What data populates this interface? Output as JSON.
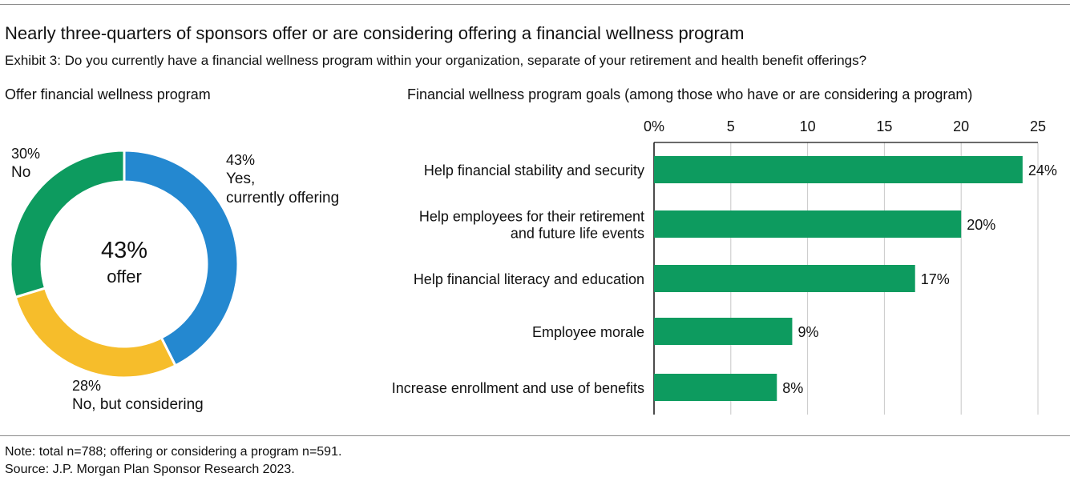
{
  "header": {
    "title": "Nearly three-quarters of sponsors offer or are considering offering a financial wellness program",
    "exhibit": "Exhibit 3: Do you currently have a financial wellness program within your organization, separate of your retirement and health benefit offerings?"
  },
  "footer": {
    "note": "Note: total n=788; offering or considering a program n=591.",
    "source": "Source: J.P. Morgan Plan Sponsor Research 2023."
  },
  "chart_data": [
    {
      "type": "pie",
      "title": "Offer financial wellness program",
      "center_value": "43%",
      "center_label": "offer",
      "slices": [
        {
          "name": "Yes, currently offering",
          "label_lines": [
            "Yes,",
            "currently offering"
          ],
          "value": 43,
          "value_label": "43%",
          "color": "#2488d0"
        },
        {
          "name": "No, but considering",
          "label_lines": [
            "No, but considering"
          ],
          "value": 28,
          "value_label": "28%",
          "color": "#f6bd2b"
        },
        {
          "name": "No",
          "label_lines": [
            "No"
          ],
          "value": 30,
          "value_label": "30%",
          "color": "#0d9b5f"
        }
      ]
    },
    {
      "type": "bar",
      "orientation": "horizontal",
      "title": "Financial wellness program goals (among those who have or are considering a program)",
      "categories": [
        [
          "Help financial stability and security"
        ],
        [
          "Help employees for their retirement",
          "and future life events"
        ],
        [
          "Help financial literacy and education"
        ],
        [
          "Employee morale"
        ],
        [
          "Increase enrollment and use of benefits"
        ]
      ],
      "values": [
        24,
        20,
        17,
        9,
        8
      ],
      "value_labels": [
        "24%",
        "20%",
        "17%",
        "9%",
        "8%"
      ],
      "xlim": [
        0,
        25
      ],
      "x_ticks": [
        0,
        5,
        10,
        15,
        20,
        25
      ],
      "x_tick_labels": [
        "0%",
        "5",
        "10",
        "15",
        "20",
        "25"
      ],
      "bar_color": "#0d9b5f",
      "axis_position": "top",
      "grid": true
    }
  ]
}
